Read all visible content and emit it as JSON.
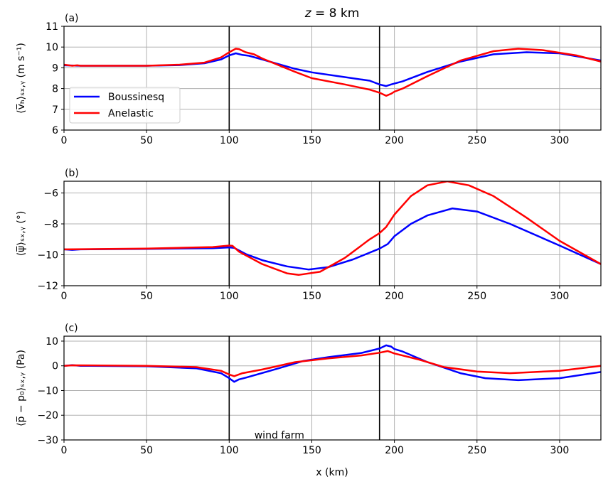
{
  "chart_data": {
    "type": "line",
    "title": "z = 8 km",
    "title_var": "z",
    "title_rest": " = 8 km",
    "xlabel": "x (km)",
    "xlim": [
      0,
      325
    ],
    "xticks": [
      0,
      50,
      100,
      150,
      200,
      250,
      300
    ],
    "grid": true,
    "vertical_lines": [
      100,
      191
    ],
    "legend": {
      "placement": "center-left of panel (a)",
      "entries": [
        "Boussinesq",
        "Anelastic"
      ]
    },
    "colors": {
      "Boussinesq": "#0000ff",
      "Anelastic": "#ff0000",
      "grid": "#b0b0b0",
      "vline": "#000000"
    },
    "panels": [
      {
        "label": "(a)",
        "ylabel": "⟨v̅ₕ⟩ₛₓ,ᵧ (m s⁻¹)",
        "ylim": [
          6,
          11
        ],
        "yticks": [
          6,
          7,
          8,
          9,
          10,
          11
        ],
        "series": [
          {
            "name": "Boussinesq",
            "x": [
              0,
              10,
              50,
              70,
              85,
              95,
              100,
              104,
              108,
              112,
              120,
              140,
              150,
              170,
              185,
              191,
              195,
              198,
              205,
              220,
              240,
              260,
              280,
              300,
              325
            ],
            "y": [
              9.12,
              9.1,
              9.1,
              9.13,
              9.22,
              9.4,
              9.6,
              9.7,
              9.62,
              9.58,
              9.4,
              8.95,
              8.78,
              8.55,
              8.38,
              8.2,
              8.12,
              8.2,
              8.35,
              8.8,
              9.3,
              9.65,
              9.75,
              9.7,
              9.35
            ]
          },
          {
            "name": "Anelastic",
            "x": [
              0,
              5,
              8,
              10,
              50,
              70,
              85,
              95,
              100,
              104,
              106,
              110,
              115,
              120,
              140,
              150,
              170,
              185,
              191,
              195,
              198,
              200,
              205,
              220,
              240,
              260,
              275,
              290,
              310,
              325
            ],
            "y": [
              9.15,
              9.1,
              9.12,
              9.1,
              9.1,
              9.15,
              9.25,
              9.5,
              9.75,
              9.92,
              9.9,
              9.75,
              9.65,
              9.45,
              8.8,
              8.5,
              8.2,
              7.95,
              7.8,
              7.65,
              7.75,
              7.85,
              8.0,
              8.6,
              9.35,
              9.8,
              9.92,
              9.85,
              9.6,
              9.3
            ]
          }
        ]
      },
      {
        "label": "(b)",
        "ylabel": "⟨ψ̅⟩ₛₓ,ᵧ (°)",
        "ylim": [
          -12,
          -5.24
        ],
        "yticks": [
          -12,
          -10,
          -8,
          -6
        ],
        "series": [
          {
            "name": "Boussinesq",
            "x": [
              0,
              5,
              10,
              50,
              90,
              100,
              103,
              110,
              120,
              135,
              148,
              160,
              175,
              191,
              196,
              200,
              210,
              220,
              235,
              250,
              270,
              300,
              325
            ],
            "y": [
              -9.65,
              -9.68,
              -9.65,
              -9.62,
              -9.57,
              -9.52,
              -9.55,
              -9.95,
              -10.35,
              -10.75,
              -10.95,
              -10.8,
              -10.3,
              -9.6,
              -9.3,
              -8.8,
              -8.0,
              -7.45,
              -7.0,
              -7.2,
              -8.0,
              -9.4,
              -10.6
            ]
          },
          {
            "name": "Anelastic",
            "x": [
              0,
              50,
              90,
              100,
              102,
              106,
              120,
              135,
              142,
              155,
              170,
              185,
              191,
              195,
              200,
              210,
              220,
              232,
              245,
              260,
              280,
              300,
              325
            ],
            "y": [
              -9.65,
              -9.6,
              -9.5,
              -9.4,
              -9.42,
              -9.8,
              -10.6,
              -11.2,
              -11.3,
              -11.1,
              -10.2,
              -9.0,
              -8.6,
              -8.2,
              -7.4,
              -6.2,
              -5.5,
              -5.25,
              -5.5,
              -6.2,
              -7.6,
              -9.1,
              -10.6
            ]
          }
        ]
      },
      {
        "label": "(c)",
        "ylabel": "⟨p̅ − p₀⟩ₛₓ,ᵧ (Pa)",
        "ylim": [
          -30,
          12
        ],
        "yticks": [
          -30,
          -20,
          -10,
          0,
          10
        ],
        "annotation": {
          "text": "wind farm",
          "x": 145,
          "y": -28
        },
        "series": [
          {
            "name": "Boussinesq",
            "x": [
              0,
              5,
              10,
              50,
              80,
              95,
              100,
              103,
              106,
              110,
              130,
              145,
              160,
              180,
              191,
              195,
              198,
              200,
              205,
              220,
              240,
              255,
              275,
              300,
              325
            ],
            "y": [
              0,
              0.3,
              0,
              -0.2,
              -1,
              -3,
              -5,
              -6.5,
              -5.5,
              -4.8,
              -1,
              2,
              3.5,
              5.2,
              7,
              8.3,
              7.8,
              6.8,
              5.8,
              1.5,
              -3,
              -5,
              -5.8,
              -5,
              -2.5
            ]
          },
          {
            "name": "Anelastic",
            "x": [
              0,
              5,
              50,
              80,
              95,
              100,
              103,
              108,
              120,
              140,
              160,
              180,
              191,
              196,
              200,
              215,
              230,
              250,
              270,
              300,
              325
            ],
            "y": [
              0,
              0.2,
              0,
              -0.5,
              -2,
              -3.5,
              -4.2,
              -3,
              -1.5,
              1.5,
              3,
              4.2,
              5.3,
              6,
              5,
              2.5,
              -0.5,
              -2.3,
              -3,
              -2,
              0
            ]
          }
        ]
      }
    ]
  }
}
